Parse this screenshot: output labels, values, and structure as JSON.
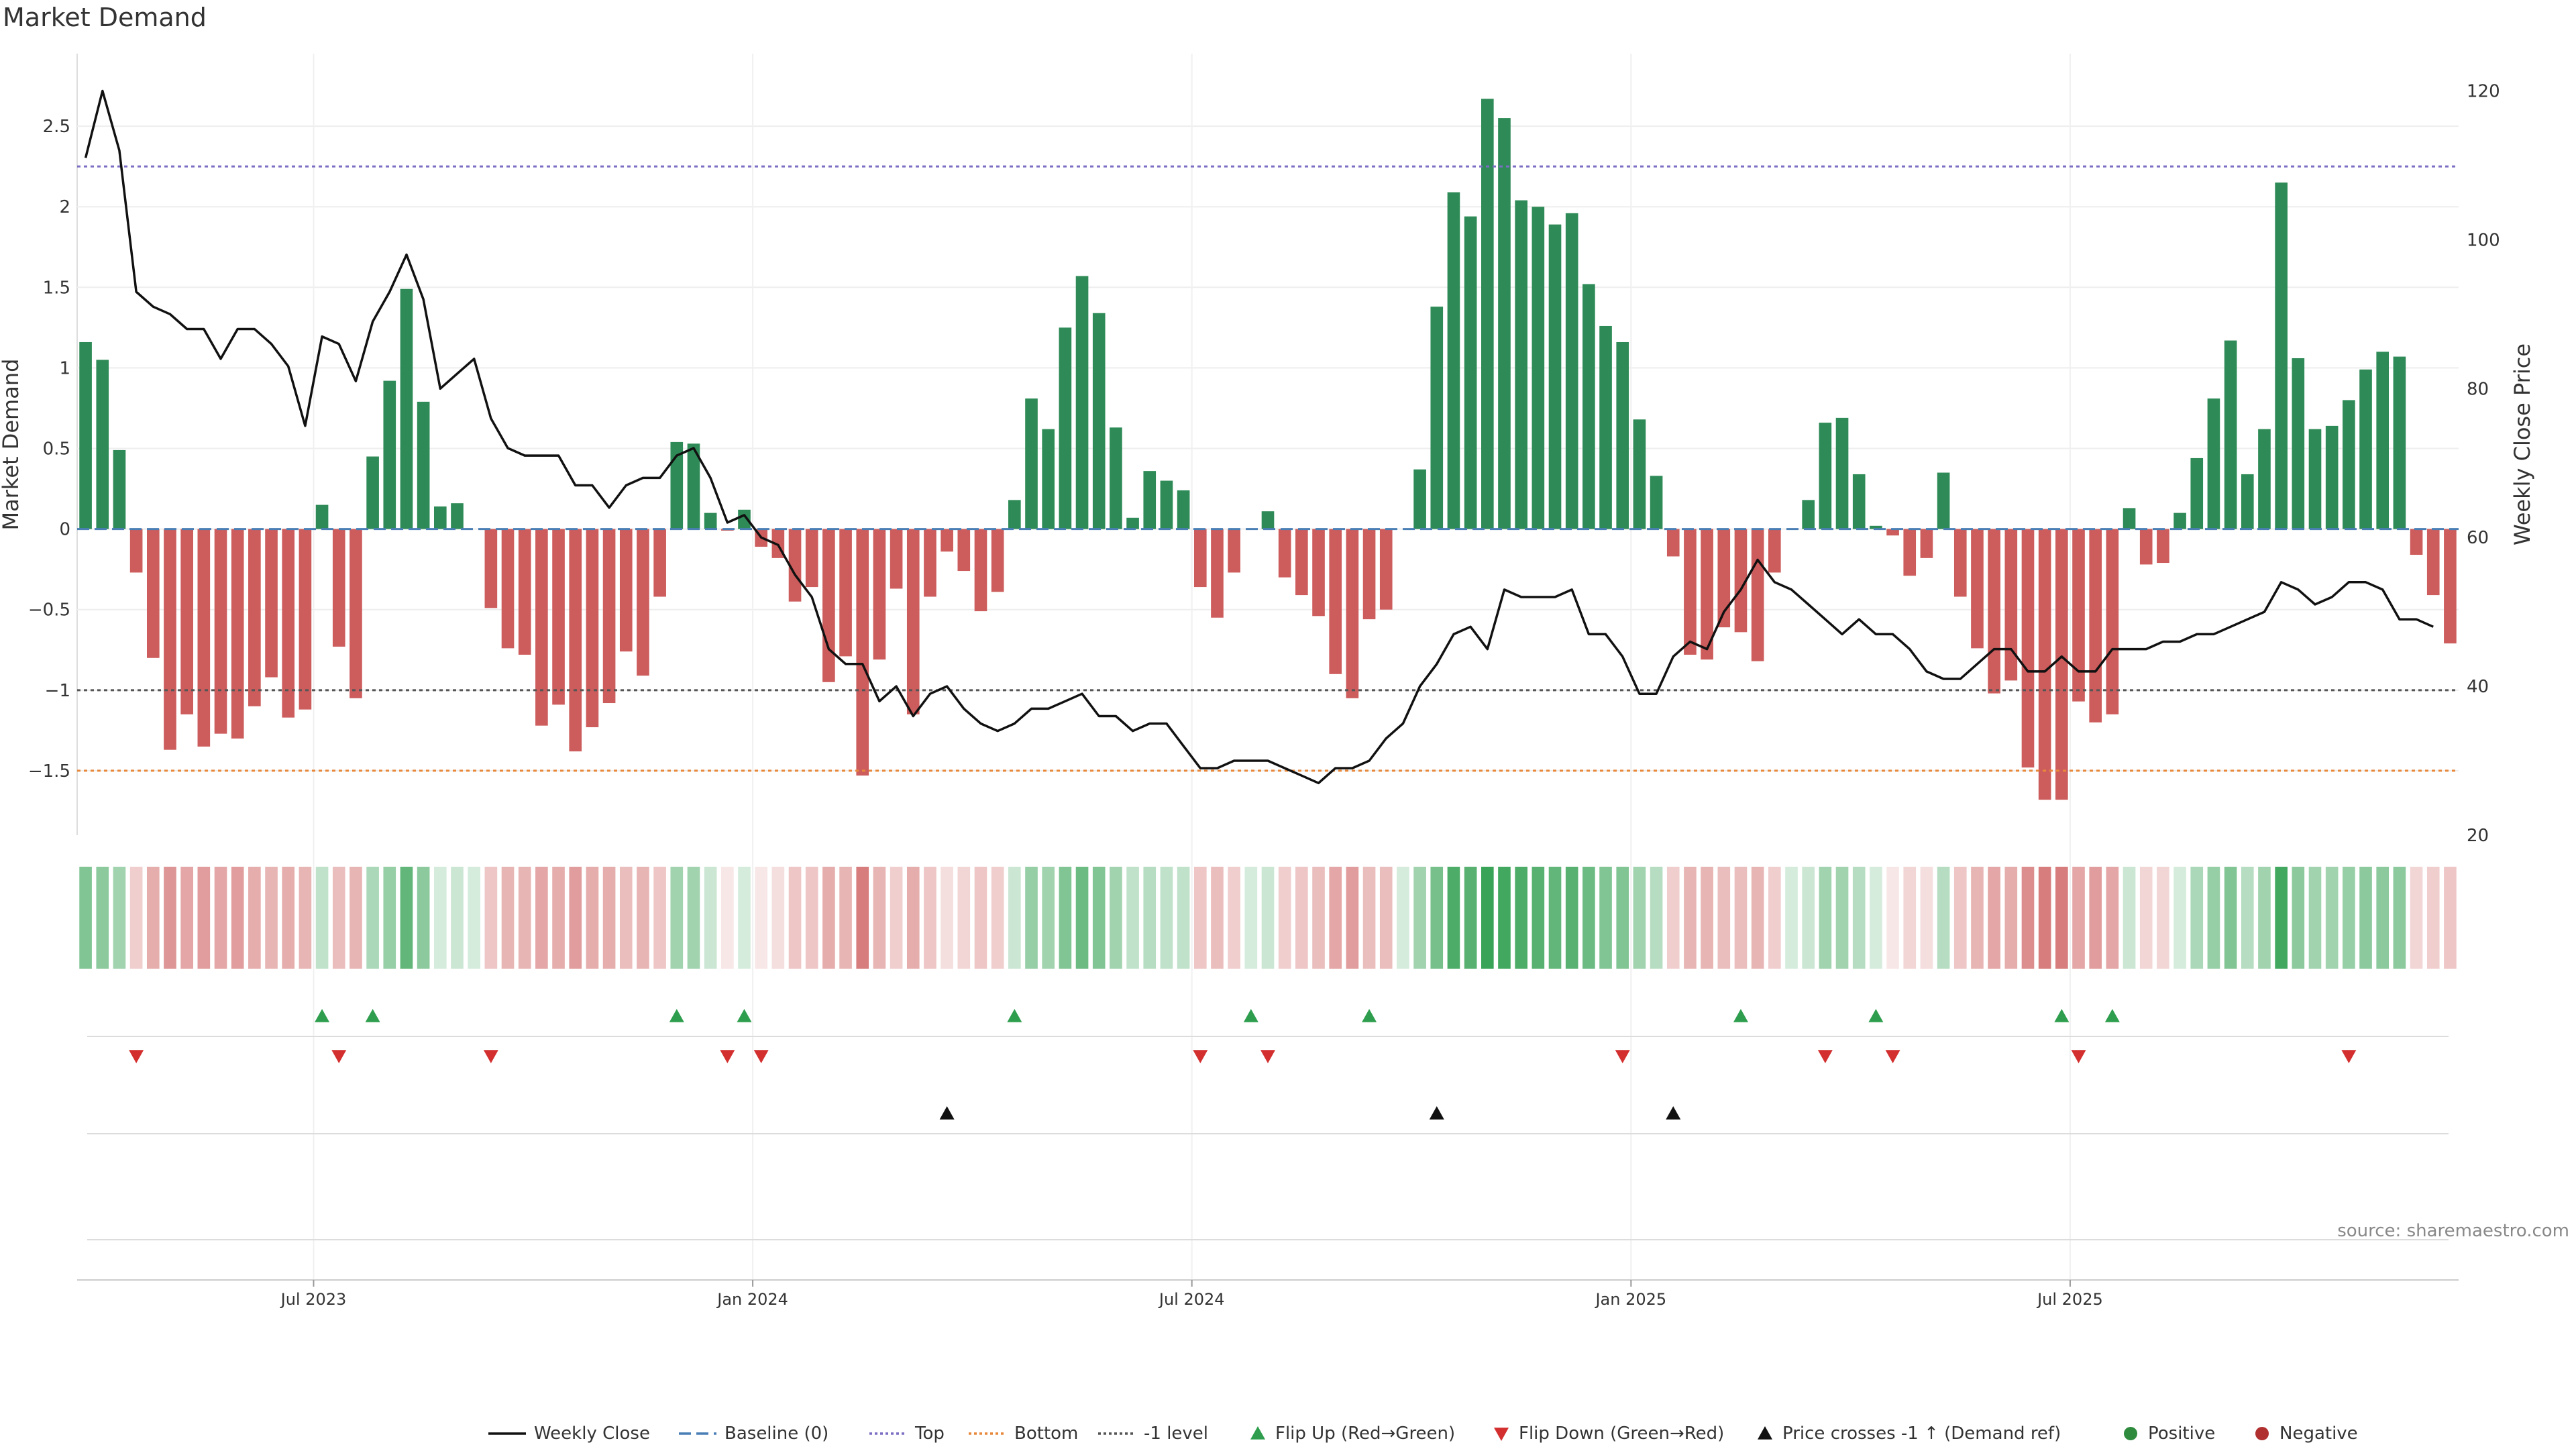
{
  "chart_data": {
    "type": "bar",
    "title": "Market Demand",
    "ylabel_left": "Market Demand",
    "ylabel_right": "Weekly Close Price",
    "ylim_left": [
      -1.9,
      2.95
    ],
    "ylim_right": [
      20,
      125
    ],
    "yticks_left": [
      2.5,
      2,
      1.5,
      1,
      0.5,
      0,
      -0.5,
      -1,
      -1.5
    ],
    "ytick_labels_left": [
      "2.5",
      "2",
      "1.5",
      "1",
      "0.5",
      "0",
      "−0.5",
      "−1",
      "−1.5"
    ],
    "yticks_right": [
      120,
      100,
      80,
      60,
      40,
      20
    ],
    "ytick_labels_right": [
      "120",
      "100",
      "80",
      "60",
      "40",
      "20"
    ],
    "x_ticks": [
      {
        "label": "Jul 2023",
        "week": 14
      },
      {
        "label": "Jan 2024",
        "week": 40
      },
      {
        "label": "Jul 2024",
        "week": 66
      },
      {
        "label": "Jan 2025",
        "week": 92
      },
      {
        "label": "Jul 2025",
        "week": 118
      }
    ],
    "reference_lines": [
      {
        "name": "Top",
        "value": 2.25,
        "color": "#7b6fc4"
      },
      {
        "name": "-1 level",
        "value": -1.0,
        "color": "#555555"
      },
      {
        "name": "Bottom",
        "value": -1.5,
        "color": "#e8883a"
      },
      {
        "name": "Baseline (0)",
        "value": 0,
        "color": "#4a7fb5"
      }
    ],
    "demand": [
      1.16,
      1.05,
      0.49,
      -0.27,
      -0.8,
      -1.37,
      -1.15,
      -1.35,
      -1.27,
      -1.3,
      -1.1,
      -0.92,
      -1.17,
      -1.12,
      0.15,
      -0.73,
      -1.05,
      0.45,
      0.92,
      1.49,
      0.79,
      0.14,
      0.16,
      0,
      -0.49,
      -0.74,
      -0.78,
      -1.22,
      -1.09,
      -1.38,
      -1.23,
      -1.08,
      -0.76,
      -0.91,
      -0.42,
      0.54,
      0.53,
      0.1,
      -0.01,
      0.12,
      -0.11,
      -0.18,
      -0.45,
      -0.36,
      -0.95,
      -0.79,
      -1.53,
      -0.81,
      -0.37,
      -1.15,
      -0.42,
      -0.14,
      -0.26,
      -0.51,
      -0.39,
      0.18,
      0.81,
      0.62,
      1.25,
      1.57,
      1.34,
      0.63,
      0.07,
      0.36,
      0.3,
      0.24,
      -0.36,
      -0.55,
      -0.27,
      0,
      0.11,
      -0.3,
      -0.41,
      -0.54,
      -0.9,
      -1.05,
      -0.56,
      -0.5,
      0,
      0.37,
      1.38,
      2.09,
      1.94,
      2.67,
      2.55,
      2.04,
      2.0,
      1.89,
      1.96,
      1.52,
      1.26,
      1.16,
      0.68,
      0.33,
      -0.17,
      -0.78,
      -0.81,
      -0.61,
      -0.64,
      -0.82,
      -0.27,
      0,
      0.18,
      0.66,
      0.69,
      0.34,
      0.02,
      -0.04,
      -0.29,
      -0.18,
      0.35,
      -0.42,
      -0.74,
      -1.02,
      -0.94,
      -1.48,
      -1.68,
      -1.68,
      -1.07,
      -1.2,
      -1.15,
      0.13,
      -0.22,
      -0.21,
      0.1,
      0.44,
      0.81,
      1.17,
      0.34,
      0.62,
      2.15,
      1.06,
      0.62,
      0.64,
      0.8,
      0.99,
      1.1,
      1.07,
      -0.16,
      -0.41,
      -0.71
    ],
    "weekly_close": [
      111,
      120,
      112,
      93,
      91,
      90,
      88,
      88,
      84,
      88,
      88,
      86,
      83,
      75,
      87,
      86,
      81,
      89,
      93,
      98,
      92,
      80,
      82,
      84,
      76,
      72,
      71,
      71,
      71,
      67,
      67,
      64,
      67,
      68,
      68,
      71,
      72,
      68,
      62,
      63,
      60,
      59,
      55,
      52,
      45,
      43,
      43,
      38,
      40,
      36,
      39,
      40,
      37,
      35,
      34,
      35,
      37,
      37,
      38,
      39,
      36,
      36,
      34,
      35,
      35,
      32,
      29,
      29,
      30,
      30,
      30,
      29,
      28,
      27,
      29,
      29,
      30,
      33,
      35,
      40,
      43,
      47,
      48,
      45,
      53,
      52,
      52,
      52,
      53,
      47,
      47,
      44,
      39,
      39,
      44,
      46,
      45,
      50,
      53,
      57,
      54,
      53,
      51,
      49,
      47,
      49,
      47,
      47,
      45,
      42,
      41,
      41,
      43,
      45,
      45,
      42,
      42,
      44,
      42,
      42,
      45,
      45,
      45,
      46,
      46,
      47,
      47,
      48,
      49,
      50,
      54,
      53,
      51,
      52,
      54,
      54,
      53,
      49,
      49,
      48
    ],
    "heat_strip": [
      0.6,
      0.55,
      0.45,
      -0.3,
      -0.5,
      -0.65,
      -0.55,
      -0.6,
      -0.55,
      -0.6,
      -0.5,
      -0.45,
      -0.5,
      -0.45,
      0.3,
      -0.4,
      -0.45,
      0.4,
      0.5,
      0.75,
      0.55,
      0.2,
      0.25,
      0.2,
      -0.35,
      -0.45,
      -0.45,
      -0.55,
      -0.5,
      -0.6,
      -0.5,
      -0.5,
      -0.4,
      -0.45,
      -0.35,
      0.45,
      0.45,
      0.25,
      -0.15,
      0.2,
      -0.15,
      -0.2,
      -0.35,
      -0.35,
      -0.5,
      -0.45,
      -0.8,
      -0.45,
      -0.3,
      -0.5,
      -0.35,
      -0.2,
      -0.25,
      -0.35,
      -0.3,
      0.25,
      0.5,
      0.45,
      0.6,
      0.7,
      0.6,
      0.45,
      0.3,
      0.35,
      0.3,
      0.3,
      -0.35,
      -0.4,
      -0.3,
      0.2,
      0.25,
      -0.3,
      -0.35,
      -0.4,
      -0.55,
      -0.6,
      -0.4,
      -0.4,
      0.2,
      0.45,
      0.65,
      0.85,
      0.8,
      0.95,
      0.9,
      0.85,
      0.8,
      0.75,
      0.8,
      0.7,
      0.6,
      0.6,
      0.45,
      0.35,
      -0.3,
      -0.45,
      -0.45,
      -0.4,
      -0.4,
      -0.45,
      -0.3,
      0.2,
      0.25,
      0.45,
      0.45,
      0.35,
      0.2,
      -0.15,
      -0.25,
      -0.2,
      0.35,
      -0.35,
      -0.45,
      -0.55,
      -0.5,
      -0.7,
      -0.8,
      -0.8,
      -0.55,
      -0.6,
      -0.55,
      0.25,
      -0.25,
      -0.25,
      0.2,
      0.4,
      0.5,
      0.6,
      0.35,
      0.45,
      0.9,
      0.55,
      0.45,
      0.45,
      0.5,
      0.55,
      0.55,
      0.55,
      -0.25,
      -0.3,
      -0.35
    ],
    "flip_up_weeks": [
      14,
      17,
      35,
      39,
      55,
      69,
      76,
      98,
      106,
      117,
      120
    ],
    "flip_down_weeks": [
      3,
      15,
      24,
      38,
      40,
      66,
      70,
      91,
      103,
      107,
      118,
      134
    ],
    "price_cross_weeks": [
      51,
      80,
      94
    ],
    "legend": [
      {
        "label": "Weekly Close",
        "kind": "line",
        "color": "#111111",
        "dash": ""
      },
      {
        "label": "Baseline (0)",
        "kind": "line",
        "color": "#4a7fb5",
        "dash": "18,8"
      },
      {
        "label": "Top",
        "kind": "line",
        "color": "#7b6fc4",
        "dash": "4,4"
      },
      {
        "label": "Bottom",
        "kind": "line",
        "color": "#e8883a",
        "dash": "4,4"
      },
      {
        "label": "-1 level",
        "kind": "line",
        "color": "#555555",
        "dash": "4,4"
      },
      {
        "label": "Flip Up (Red→Green)",
        "kind": "tri-up",
        "color": "#2e9e4e"
      },
      {
        "label": "Flip Down (Green→Red)",
        "kind": "tri-down",
        "color": "#d32f2f"
      },
      {
        "label": "Price crosses -1 ↑ (Demand ref)",
        "kind": "tri-up",
        "color": "#111111"
      },
      {
        "label": "Positive",
        "kind": "dot",
        "color": "#2e8b3e"
      },
      {
        "label": "Negative",
        "kind": "dot",
        "color": "#b03030"
      }
    ],
    "colors": {
      "positive": "#2e8b57",
      "negative": "#cd5c5c",
      "price": "#111111"
    }
  },
  "source_text": "source: sharemaestro.com"
}
